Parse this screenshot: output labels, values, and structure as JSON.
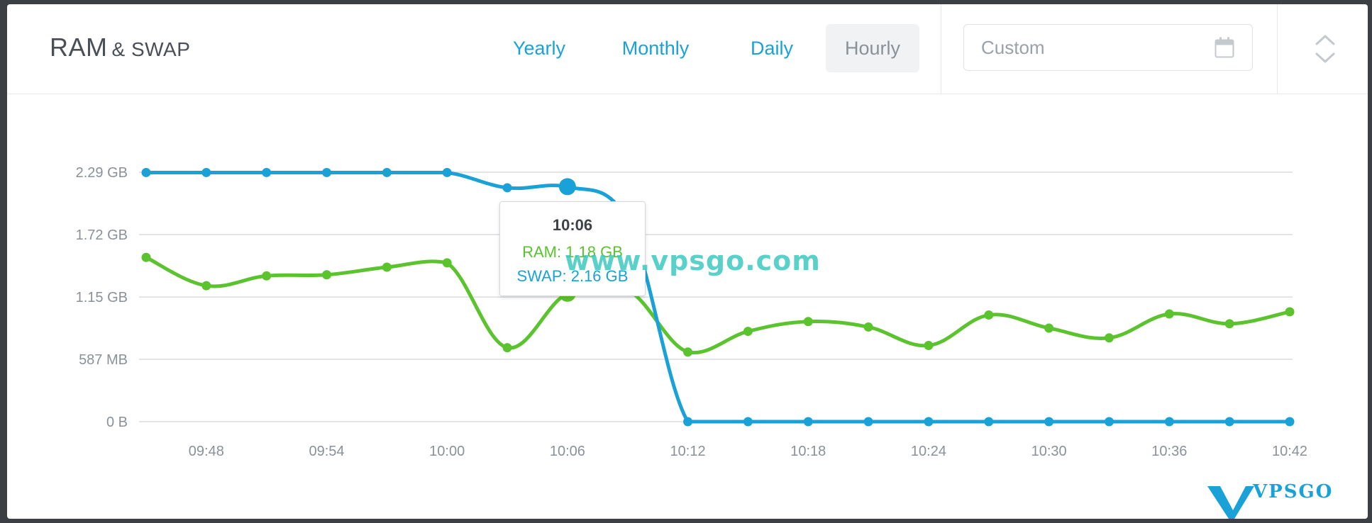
{
  "header": {
    "title": "RAM",
    "subtitle": "& SWAP",
    "ranges": [
      {
        "label": "Yearly",
        "active": false
      },
      {
        "label": "Monthly",
        "active": false
      },
      {
        "label": "Daily",
        "active": false
      },
      {
        "label": "Hourly",
        "active": true
      }
    ],
    "custom_placeholder": "Custom",
    "calendar_icon": "calendar-icon",
    "expand_icon": "expand-collapse-icon"
  },
  "colors": {
    "ram": "#5ac32e",
    "swap": "#1aa2d8",
    "grid": "#d9dce0",
    "axis_text": "#8a9199"
  },
  "tooltip": {
    "time": "10:06",
    "ram": "RAM: 1.18 GB",
    "swap": "SWAP: 2.16 GB"
  },
  "watermark": "www.vpsgo.com",
  "logo": {
    "brand": "VPSGO",
    "url": "vpsgo.com",
    "small": "www."
  },
  "chart_data": {
    "type": "line",
    "y_tick_labels": [
      "0 B",
      "587 MB",
      "1.15 GB",
      "1.72 GB",
      "2.29 GB"
    ],
    "y_tick_values_gb": [
      0,
      0.573,
      1.146,
      1.72,
      2.293
    ],
    "x_tick_labels": [
      "09:48",
      "09:54",
      "10:00",
      "10:06",
      "10:12",
      "10:18",
      "10:24",
      "10:30",
      "10:36",
      "10:42"
    ],
    "x": [
      "09:45",
      "09:48",
      "09:51",
      "09:54",
      "09:57",
      "10:00",
      "10:03",
      "10:06",
      "10:09",
      "10:12",
      "10:15",
      "10:18",
      "10:21",
      "10:24",
      "10:27",
      "10:30",
      "10:33",
      "10:36",
      "10:39",
      "10:42"
    ],
    "ylim": [
      0,
      2.293
    ],
    "grid": true,
    "series": [
      {
        "name": "SWAP",
        "values": [
          2.29,
          2.29,
          2.29,
          2.29,
          2.29,
          2.29,
          2.15,
          2.16,
          1.85,
          0,
          0,
          0,
          0,
          0,
          0,
          0,
          0,
          0,
          0,
          0
        ]
      },
      {
        "name": "RAM",
        "values": [
          1.51,
          1.25,
          1.34,
          1.35,
          1.42,
          1.46,
          0.68,
          1.18,
          1.21,
          0.64,
          0.83,
          0.92,
          0.87,
          0.7,
          0.98,
          0.86,
          0.77,
          0.99,
          0.9,
          1.01
        ]
      }
    ]
  }
}
